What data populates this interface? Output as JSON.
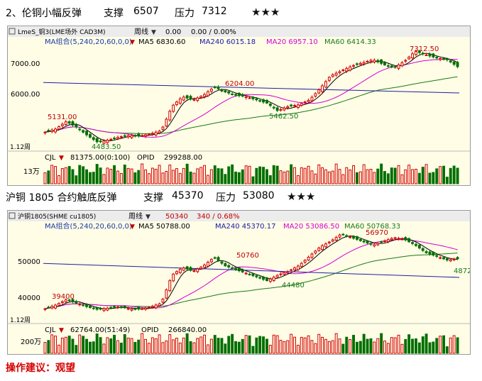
{
  "chart1": {
    "heading": {
      "title": "2、伦铜小幅反弹",
      "support_label": "支撑",
      "support_value": "6507",
      "resistance_label": "压力",
      "resistance_value": "7312",
      "rating": "★★★"
    },
    "toolbar": {
      "symbol": "LmeS_铜3(LME场外 CAD3M)",
      "period": "周线",
      "val1": "0.00",
      "val2": "0.00 / 0.00%"
    },
    "ma_legend": {
      "label": "MA组合(5,240,20,60,0,0)",
      "ma5": "MA5 6830.60",
      "ma240": "MA240 6015.18",
      "ma20": "MA20 6957.10",
      "ma60": "MA60 6414.33"
    },
    "y_ticks": [
      "7000.00",
      "6000.00"
    ],
    "annotations": {
      "high": "7312.50",
      "mid_high": "6204.00",
      "mid_low": "5462.50",
      "left_high": "5131.00",
      "low": "4483.50"
    },
    "date_label": "1.12周",
    "volume": {
      "label": "CJL",
      "value": "81375.00(0:100)",
      "opid_label": "OPID",
      "opid_value": "299288.00",
      "tick": "13万"
    }
  },
  "chart2": {
    "heading": {
      "title": "沪铜 1805 合约触底反弹",
      "support_label": "支撑",
      "support_value": "45370",
      "resistance_label": "压力",
      "resistance_value": "53080",
      "rating": "★★★"
    },
    "toolbar": {
      "symbol": "沪铜1805(SHME cu1805)",
      "period": "周线",
      "price": "50340",
      "change": "340 / 0.68%"
    },
    "ma_legend": {
      "label": "MA组合(5,240,20,60,0,0)",
      "ma5": "MA5 50788.00",
      "ma240": "MA240 45370.17",
      "ma20": "MA20 53086.50",
      "ma60": "MA60 50768.33"
    },
    "y_ticks": [
      "50000",
      "40000"
    ],
    "annotations": {
      "high": "56970",
      "mid_high": "50760",
      "mid_low": "44480",
      "left_high": "39400",
      "right_low": "4872"
    },
    "date_label": "1.12周",
    "volume": {
      "label": "CJL",
      "value": "62764.00(51:49)",
      "opid_label": "OPID",
      "opid_value": "266840.00",
      "tick": "200万"
    }
  },
  "chart_data": [
    {
      "type": "candlestick",
      "title": "伦铜",
      "ylim": [
        4300,
        7600
      ],
      "y_ticks": [
        7000,
        6000
      ],
      "ma": {
        "MA5": 6830.6,
        "MA240": 6015.18,
        "MA20": 6957.1,
        "MA60": 6414.33
      },
      "anchors": [
        4800,
        4900,
        5131,
        4950,
        4700,
        4483.5,
        4560,
        4650,
        4700,
        4680,
        4750,
        4850,
        5600,
        5900,
        5800,
        5950,
        6204,
        6050,
        5950,
        5900,
        5800,
        5700,
        5462.5,
        5600,
        5650,
        5800,
        6150,
        6550,
        6700,
        6850,
        6950,
        7050,
        6900,
        6800,
        7000,
        7312.5,
        7200,
        7100,
        7050,
        6830.6
      ]
    },
    {
      "type": "candlestick",
      "title": "沪铜1805",
      "ylim": [
        34000,
        59000
      ],
      "y_ticks": [
        50000,
        40000
      ],
      "ma": {
        "MA5": 50788.0,
        "MA240": 45370.17,
        "MA20": 53086.5,
        "MA60": 50768.33
      },
      "anchors": [
        37000,
        38000,
        39400,
        38500,
        37500,
        36800,
        37200,
        37500,
        37000,
        36900,
        37500,
        38500,
        46000,
        48000,
        47000,
        48500,
        50760,
        48500,
        47500,
        46500,
        45500,
        44480,
        46000,
        47000,
        48500,
        51000,
        53500,
        55000,
        56970,
        56000,
        55000,
        54000,
        55000,
        56000,
        55500,
        54000,
        52000,
        51000,
        50000,
        50340
      ]
    }
  ],
  "advice": "操作建议：观望"
}
